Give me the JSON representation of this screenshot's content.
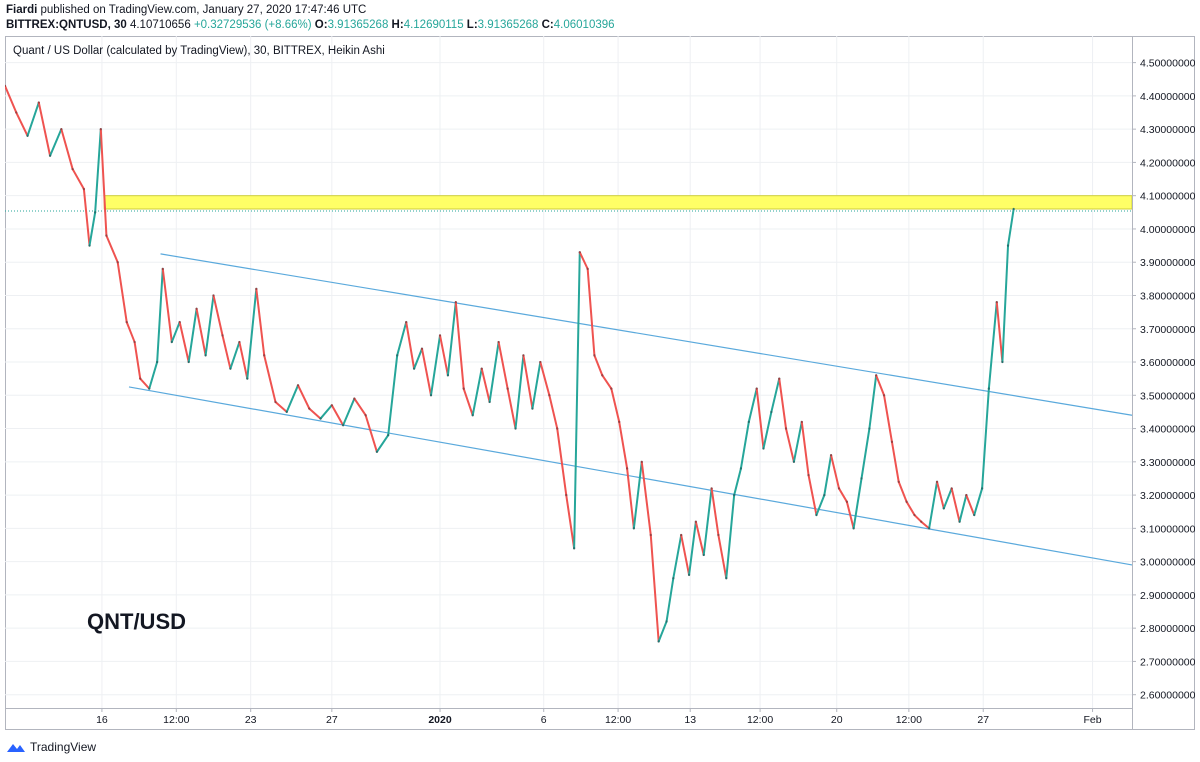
{
  "header": {
    "author": "Fiardi",
    "published": "published on TradingView.com, January 27, 2020 17:47:46 UTC",
    "symbol": "BITTREX:QNTUSD, 30",
    "price": "4.10710656",
    "change": "+0.32729536 (+8.66%)",
    "o_label": "O:",
    "o_value": "3.91365268",
    "h_label": "H:",
    "h_value": "4.12690115",
    "l_label": "L:",
    "l_value": "3.91365268",
    "c_label": "C:",
    "c_value": "4.06010396"
  },
  "chart_data": {
    "type": "line",
    "title": "Quant / US Dollar (calculated by TradingView), 30, BITTREX, Heikin Ashi",
    "annotation": "QNT/USD",
    "y_ticks": [
      "2.60000000",
      "2.70000000",
      "2.80000000",
      "2.90000000",
      "3.00000000",
      "3.10000000",
      "3.20000000",
      "3.30000000",
      "3.40000000",
      "3.50000000",
      "3.60000000",
      "3.70000000",
      "3.80000000",
      "3.90000000",
      "4.00000000",
      "4.10000000",
      "4.20000000",
      "4.30000000",
      "4.40000000",
      "4.50000000"
    ],
    "x_ticks": [
      "16",
      "12:00",
      "23",
      "27",
      "2020",
      "6",
      "12:00",
      "13",
      "12:00",
      "20",
      "12:00",
      "27",
      "Feb"
    ],
    "ylim": [
      2.56,
      4.58
    ],
    "xlim": [
      0,
      100
    ],
    "grid": true,
    "colors": {
      "up": "#26a69a",
      "down": "#ef5350",
      "channel": "#5aa9dc",
      "zone": "#ffff66"
    },
    "resistance_zone": [
      4.06,
      4.1
    ],
    "channel_upper": [
      [
        13.8,
        3.925
      ],
      [
        100,
        3.44
      ]
    ],
    "channel_lower": [
      [
        11,
        3.525
      ],
      [
        100,
        2.99
      ]
    ],
    "series": [
      {
        "values": [
          [
            0.0,
            4.43
          ],
          [
            1.0,
            4.35
          ],
          [
            2.0,
            4.28
          ],
          [
            3.0,
            4.38
          ],
          [
            4.0,
            4.22
          ],
          [
            5.0,
            4.3
          ],
          [
            6.0,
            4.18
          ],
          [
            7.0,
            4.12
          ],
          [
            7.5,
            3.95
          ],
          [
            8.0,
            4.05
          ],
          [
            8.5,
            4.3
          ],
          [
            9.0,
            3.98
          ],
          [
            10.0,
            3.9
          ],
          [
            10.8,
            3.72
          ],
          [
            11.5,
            3.66
          ],
          [
            12.0,
            3.55
          ],
          [
            12.8,
            3.52
          ],
          [
            13.5,
            3.6
          ],
          [
            14.0,
            3.88
          ],
          [
            14.8,
            3.66
          ],
          [
            15.5,
            3.72
          ],
          [
            16.3,
            3.6
          ],
          [
            17.0,
            3.76
          ],
          [
            17.8,
            3.62
          ],
          [
            18.5,
            3.8
          ],
          [
            19.3,
            3.68
          ],
          [
            20.0,
            3.58
          ],
          [
            20.8,
            3.66
          ],
          [
            21.5,
            3.55
          ],
          [
            22.3,
            3.82
          ],
          [
            23.0,
            3.62
          ],
          [
            24.0,
            3.48
          ],
          [
            25.0,
            3.45
          ],
          [
            26.0,
            3.53
          ],
          [
            27.0,
            3.46
          ],
          [
            28.0,
            3.43
          ],
          [
            29.0,
            3.47
          ],
          [
            30.0,
            3.41
          ],
          [
            31.0,
            3.49
          ],
          [
            32.0,
            3.44
          ],
          [
            33.0,
            3.33
          ],
          [
            34.0,
            3.38
          ],
          [
            34.8,
            3.62
          ],
          [
            35.6,
            3.72
          ],
          [
            36.3,
            3.58
          ],
          [
            37.0,
            3.64
          ],
          [
            37.8,
            3.5
          ],
          [
            38.6,
            3.68
          ],
          [
            39.3,
            3.56
          ],
          [
            40.0,
            3.78
          ],
          [
            40.7,
            3.52
          ],
          [
            41.5,
            3.44
          ],
          [
            42.3,
            3.58
          ],
          [
            43.0,
            3.48
          ],
          [
            43.8,
            3.66
          ],
          [
            44.6,
            3.52
          ],
          [
            45.3,
            3.4
          ],
          [
            46.0,
            3.62
          ],
          [
            46.8,
            3.46
          ],
          [
            47.5,
            3.6
          ],
          [
            48.3,
            3.5
          ],
          [
            49.0,
            3.4
          ],
          [
            49.8,
            3.2
          ],
          [
            50.5,
            3.04
          ],
          [
            51.0,
            3.93
          ],
          [
            51.7,
            3.88
          ],
          [
            52.3,
            3.62
          ],
          [
            53.0,
            3.56
          ],
          [
            53.8,
            3.52
          ],
          [
            54.5,
            3.42
          ],
          [
            55.2,
            3.28
          ],
          [
            55.8,
            3.1
          ],
          [
            56.5,
            3.3
          ],
          [
            57.3,
            3.08
          ],
          [
            58.0,
            2.76
          ],
          [
            58.7,
            2.82
          ],
          [
            59.3,
            2.95
          ],
          [
            60.0,
            3.08
          ],
          [
            60.7,
            2.96
          ],
          [
            61.3,
            3.12
          ],
          [
            62.0,
            3.02
          ],
          [
            62.7,
            3.22
          ],
          [
            63.3,
            3.08
          ],
          [
            64.0,
            2.95
          ],
          [
            64.7,
            3.2
          ],
          [
            65.3,
            3.28
          ],
          [
            66.0,
            3.42
          ],
          [
            66.7,
            3.52
          ],
          [
            67.3,
            3.34
          ],
          [
            68.0,
            3.45
          ],
          [
            68.7,
            3.55
          ],
          [
            69.3,
            3.4
          ],
          [
            70.0,
            3.3
          ],
          [
            70.7,
            3.42
          ],
          [
            71.3,
            3.26
          ],
          [
            72.0,
            3.14
          ],
          [
            72.7,
            3.2
          ],
          [
            73.3,
            3.32
          ],
          [
            74.0,
            3.22
          ],
          [
            74.7,
            3.18
          ],
          [
            75.3,
            3.1
          ],
          [
            76.0,
            3.25
          ],
          [
            76.7,
            3.4
          ],
          [
            77.3,
            3.56
          ],
          [
            78.0,
            3.5
          ],
          [
            78.7,
            3.36
          ],
          [
            79.3,
            3.24
          ],
          [
            80.0,
            3.18
          ],
          [
            80.7,
            3.14
          ],
          [
            81.3,
            3.12
          ],
          [
            82.0,
            3.1
          ],
          [
            82.7,
            3.24
          ],
          [
            83.3,
            3.16
          ],
          [
            84.0,
            3.22
          ],
          [
            84.7,
            3.12
          ],
          [
            85.3,
            3.2
          ],
          [
            86.0,
            3.14
          ],
          [
            86.7,
            3.22
          ],
          [
            87.3,
            3.52
          ],
          [
            88.0,
            3.78
          ],
          [
            88.5,
            3.6
          ],
          [
            89.0,
            3.95
          ],
          [
            89.5,
            4.06
          ]
        ]
      }
    ]
  },
  "footer": {
    "brand": "TradingView"
  }
}
